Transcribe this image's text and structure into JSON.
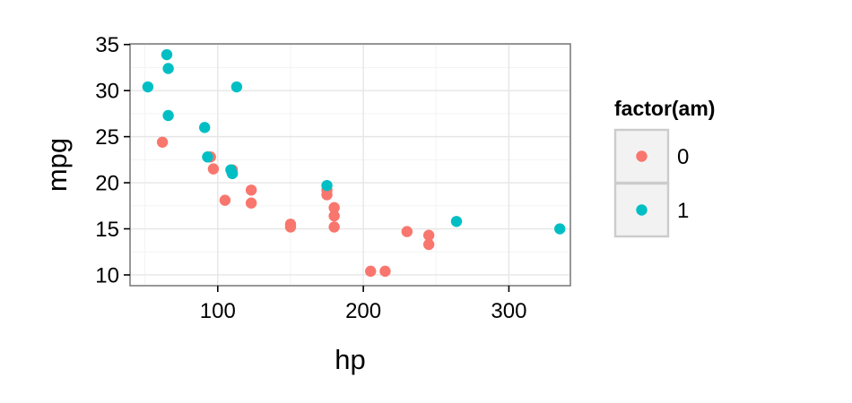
{
  "chart_data": {
    "type": "scatter",
    "xlabel": "hp",
    "ylabel": "mpg",
    "xlim": [
      39.75,
      342.25
    ],
    "ylim": [
      8.83,
      35.07
    ],
    "x_ticks": [
      100,
      200,
      300
    ],
    "y_ticks": [
      10,
      15,
      20,
      25,
      30,
      35
    ],
    "grid": true,
    "legend": {
      "title": "factor(am)",
      "position": "right",
      "entries": [
        {
          "label": "0",
          "color": "#F8766D"
        },
        {
          "label": "1",
          "color": "#00BFC4"
        }
      ]
    },
    "series": [
      {
        "name": "0",
        "color": "#F8766D",
        "points": [
          {
            "x": 110,
            "y": 21.4
          },
          {
            "x": 175,
            "y": 18.7
          },
          {
            "x": 105,
            "y": 18.1
          },
          {
            "x": 245,
            "y": 14.3
          },
          {
            "x": 62,
            "y": 24.4
          },
          {
            "x": 95,
            "y": 22.8
          },
          {
            "x": 123,
            "y": 19.2
          },
          {
            "x": 123,
            "y": 17.8
          },
          {
            "x": 180,
            "y": 16.4
          },
          {
            "x": 180,
            "y": 17.3
          },
          {
            "x": 180,
            "y": 15.2
          },
          {
            "x": 205,
            "y": 10.4
          },
          {
            "x": 215,
            "y": 10.4
          },
          {
            "x": 230,
            "y": 14.7
          },
          {
            "x": 97,
            "y": 21.5
          },
          {
            "x": 150,
            "y": 15.5
          },
          {
            "x": 150,
            "y": 15.2
          },
          {
            "x": 245,
            "y": 13.3
          },
          {
            "x": 175,
            "y": 19.2
          }
        ]
      },
      {
        "name": "1",
        "color": "#00BFC4",
        "points": [
          {
            "x": 110,
            "y": 21.0
          },
          {
            "x": 110,
            "y": 21.0
          },
          {
            "x": 93,
            "y": 22.8
          },
          {
            "x": 66,
            "y": 32.4
          },
          {
            "x": 52,
            "y": 30.4
          },
          {
            "x": 65,
            "y": 33.9
          },
          {
            "x": 66,
            "y": 27.3
          },
          {
            "x": 91,
            "y": 26.0
          },
          {
            "x": 113,
            "y": 30.4
          },
          {
            "x": 264,
            "y": 15.8
          },
          {
            "x": 175,
            "y": 19.7
          },
          {
            "x": 335,
            "y": 15.0
          },
          {
            "x": 109,
            "y": 21.4
          }
        ]
      }
    ]
  }
}
